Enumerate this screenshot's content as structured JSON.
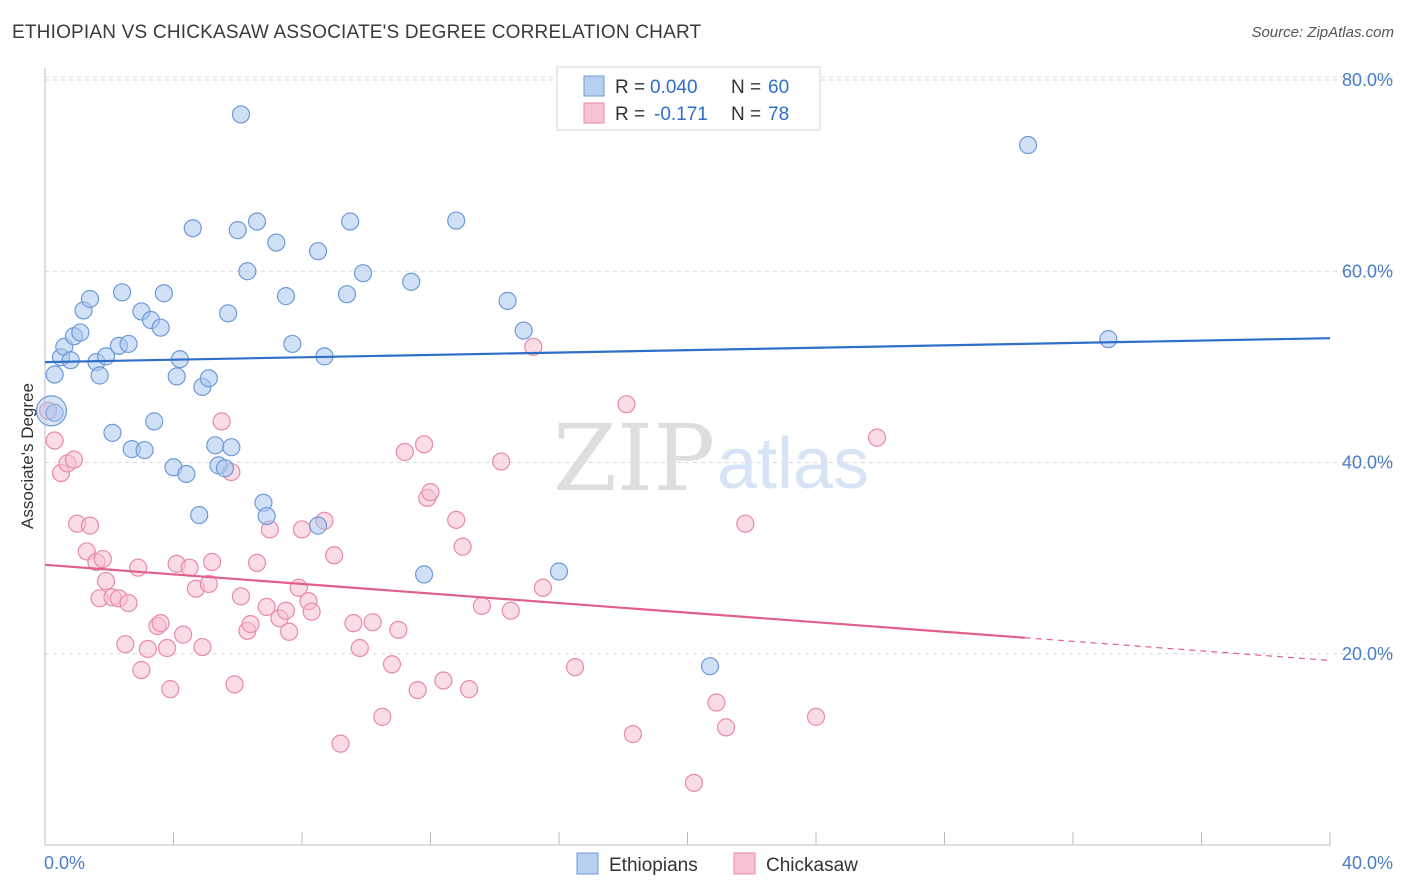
{
  "title": "ETHIOPIAN VS CHICKASAW ASSOCIATE'S DEGREE CORRELATION CHART",
  "source": "Source: ZipAtlas.com",
  "watermark": {
    "zip": "ZIP",
    "atlas": "atlas"
  },
  "legend_box": {
    "rows": [
      {
        "r_label": "R = ",
        "r_value": "0.040",
        "n_label": "N = ",
        "n_value": "60",
        "swatch": "#b8d0f0",
        "swatch_border": "#6f9ad8"
      },
      {
        "r_label": "R = ",
        "r_value": "-0.171",
        "n_label": "N = ",
        "n_value": "78",
        "swatch": "#f7c3d3",
        "swatch_border": "#e88aa8"
      }
    ]
  },
  "bottom_legend": [
    {
      "label": "Ethiopians",
      "swatch": "#b8d0f0",
      "border": "#6f9ad8"
    },
    {
      "label": "Chickasaw",
      "swatch": "#f7c3d3",
      "border": "#e88aa8"
    }
  ],
  "colors": {
    "blue_fill": "#a9c6ee",
    "blue_stroke": "#6f9ad8",
    "blue_line": "#2f6fc8",
    "pink_fill": "#f6bfd0",
    "pink_stroke": "#e88aa8",
    "pink_line": "#e0608a",
    "tick_text": "#4a7cc9",
    "grid": "#d8d8d8"
  },
  "chart_data": {
    "type": "scatter",
    "title": "ETHIOPIAN VS CHICKASAW ASSOCIATE'S DEGREE CORRELATION CHART",
    "xlabel": "",
    "ylabel": "Associate's Degree",
    "xlim": [
      0,
      40
    ],
    "ylim": [
      0,
      80
    ],
    "x_tick_labels": [
      "0.0%",
      "40.0%"
    ],
    "y_ticks": [
      {
        "value": 20,
        "label": "20.0%"
      },
      {
        "value": 40,
        "label": "40.0%"
      },
      {
        "value": 60,
        "label": "60.0%"
      },
      {
        "value": 80,
        "label": "80.0%"
      }
    ],
    "grid": true,
    "legend_position": "top-center",
    "series": [
      {
        "name": "Ethiopians",
        "r": 0.04,
        "n": 60,
        "trend": {
          "x": [
            0,
            40
          ],
          "y": [
            50.5,
            53.0
          ],
          "dashed_from": null
        },
        "points": [
          [
            0.3,
            49.2
          ],
          [
            0.3,
            45.2
          ],
          [
            0.5,
            51.0
          ],
          [
            0.6,
            52.1
          ],
          [
            0.8,
            50.7
          ],
          [
            0.9,
            53.2
          ],
          [
            1.1,
            53.6
          ],
          [
            1.2,
            55.9
          ],
          [
            1.4,
            57.1
          ],
          [
            1.6,
            50.5
          ],
          [
            1.7,
            49.1
          ],
          [
            1.9,
            51.1
          ],
          [
            2.1,
            43.1
          ],
          [
            2.3,
            52.2
          ],
          [
            2.4,
            57.8
          ],
          [
            2.6,
            52.4
          ],
          [
            2.7,
            41.4
          ],
          [
            3.0,
            55.8
          ],
          [
            3.1,
            41.3
          ],
          [
            3.3,
            54.9
          ],
          [
            3.4,
            44.3
          ],
          [
            3.6,
            54.1
          ],
          [
            3.7,
            57.7
          ],
          [
            4.0,
            39.5
          ],
          [
            4.1,
            49.0
          ],
          [
            4.2,
            50.8
          ],
          [
            4.4,
            38.8
          ],
          [
            4.6,
            64.5
          ],
          [
            4.8,
            34.5
          ],
          [
            4.9,
            47.9
          ],
          [
            5.1,
            48.8
          ],
          [
            5.3,
            41.8
          ],
          [
            5.4,
            39.7
          ],
          [
            5.6,
            39.4
          ],
          [
            5.7,
            55.6
          ],
          [
            5.8,
            41.6
          ],
          [
            6.0,
            64.3
          ],
          [
            6.1,
            76.4
          ],
          [
            6.3,
            60.0
          ],
          [
            6.6,
            65.2
          ],
          [
            6.8,
            35.8
          ],
          [
            6.9,
            34.4
          ],
          [
            7.2,
            63.0
          ],
          [
            7.5,
            57.4
          ],
          [
            7.7,
            52.4
          ],
          [
            8.5,
            62.1
          ],
          [
            8.5,
            33.4
          ],
          [
            8.7,
            51.1
          ],
          [
            9.4,
            57.6
          ],
          [
            9.5,
            65.2
          ],
          [
            9.9,
            59.8
          ],
          [
            11.4,
            58.9
          ],
          [
            11.8,
            28.3
          ],
          [
            12.8,
            65.3
          ],
          [
            14.4,
            56.9
          ],
          [
            14.9,
            53.8
          ],
          [
            16.0,
            28.6
          ],
          [
            20.7,
            18.7
          ],
          [
            30.6,
            73.2
          ],
          [
            33.1,
            52.9
          ]
        ]
      },
      {
        "name": "Chickasaw",
        "r": -0.171,
        "n": 78,
        "trend": {
          "x": [
            0,
            40
          ],
          "y": [
            29.3,
            19.3
          ],
          "dashed_from": 30.5
        },
        "points": [
          [
            0.3,
            42.3
          ],
          [
            0.5,
            38.9
          ],
          [
            0.7,
            39.9
          ],
          [
            0.9,
            40.3
          ],
          [
            1.0,
            33.6
          ],
          [
            1.3,
            30.7
          ],
          [
            1.4,
            33.4
          ],
          [
            1.6,
            29.6
          ],
          [
            1.7,
            25.8
          ],
          [
            1.8,
            29.9
          ],
          [
            1.9,
            27.6
          ],
          [
            2.1,
            25.9
          ],
          [
            2.3,
            25.8
          ],
          [
            2.5,
            21.0
          ],
          [
            2.6,
            25.3
          ],
          [
            2.9,
            29.0
          ],
          [
            3.0,
            18.3
          ],
          [
            3.2,
            20.5
          ],
          [
            3.5,
            22.9
          ],
          [
            3.6,
            23.2
          ],
          [
            3.8,
            20.6
          ],
          [
            3.9,
            16.3
          ],
          [
            4.1,
            29.4
          ],
          [
            4.3,
            22.0
          ],
          [
            4.5,
            29.0
          ],
          [
            4.7,
            26.8
          ],
          [
            4.9,
            20.7
          ],
          [
            5.1,
            27.3
          ],
          [
            5.2,
            29.6
          ],
          [
            5.5,
            44.3
          ],
          [
            5.8,
            39.0
          ],
          [
            5.9,
            16.8
          ],
          [
            6.1,
            26.0
          ],
          [
            6.3,
            22.4
          ],
          [
            6.4,
            23.1
          ],
          [
            6.6,
            29.5
          ],
          [
            6.9,
            24.9
          ],
          [
            7.0,
            33.0
          ],
          [
            7.3,
            23.7
          ],
          [
            7.5,
            24.5
          ],
          [
            7.6,
            22.3
          ],
          [
            7.9,
            26.9
          ],
          [
            8.0,
            33.0
          ],
          [
            8.2,
            25.5
          ],
          [
            8.3,
            24.4
          ],
          [
            8.7,
            33.9
          ],
          [
            9.0,
            30.3
          ],
          [
            9.2,
            10.6
          ],
          [
            9.6,
            23.2
          ],
          [
            9.8,
            20.6
          ],
          [
            10.2,
            23.3
          ],
          [
            10.5,
            13.4
          ],
          [
            10.8,
            18.9
          ],
          [
            11.0,
            22.5
          ],
          [
            11.2,
            41.1
          ],
          [
            11.6,
            16.2
          ],
          [
            11.8,
            41.9
          ],
          [
            11.9,
            36.3
          ],
          [
            12.0,
            36.9
          ],
          [
            12.4,
            17.2
          ],
          [
            12.8,
            34.0
          ],
          [
            13.0,
            31.2
          ],
          [
            13.2,
            16.3
          ],
          [
            13.6,
            25.0
          ],
          [
            14.2,
            40.1
          ],
          [
            14.5,
            24.5
          ],
          [
            15.2,
            52.1
          ],
          [
            15.5,
            26.9
          ],
          [
            16.5,
            18.6
          ],
          [
            18.1,
            46.1
          ],
          [
            18.3,
            11.6
          ],
          [
            20.2,
            6.5
          ],
          [
            20.9,
            14.9
          ],
          [
            21.2,
            12.3
          ],
          [
            21.8,
            33.6
          ],
          [
            24.0,
            13.4
          ],
          [
            25.9,
            42.6
          ],
          [
            0.1,
            45.4
          ]
        ]
      }
    ]
  }
}
